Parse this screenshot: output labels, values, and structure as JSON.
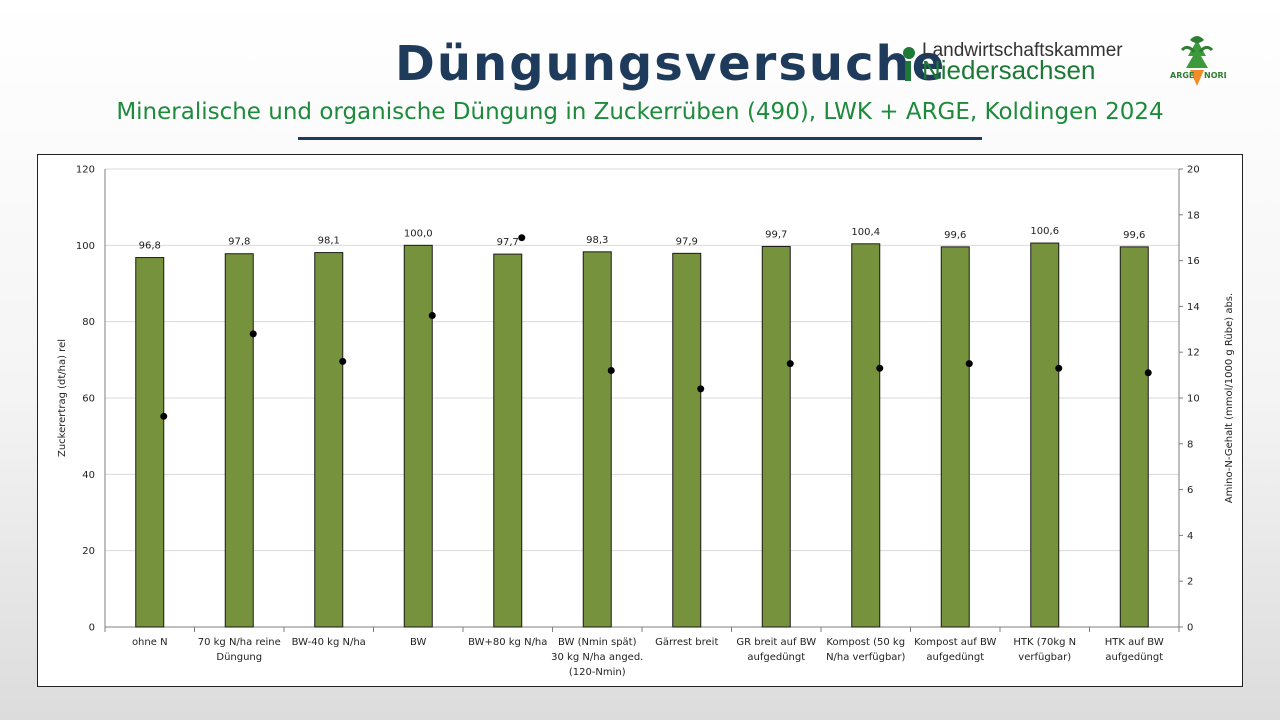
{
  "header": {
    "title": "Düngungsversuche",
    "subtitle": "Mineralische und organische Düngung in Zuckerrüben (490), LWK + ARGE, Koldingen 2024",
    "logo_lwk_line1": "Landwirtschaftskammer",
    "logo_lwk_line2": "Niedersachsen",
    "logo_arge_left": "ARGE",
    "logo_arge_right": "NORD"
  },
  "colors": {
    "title": "#1f3b5c",
    "subtitle": "#1d8a3c",
    "bar_fill": "#76923c",
    "point": "#000000"
  },
  "chart_data": {
    "type": "bar",
    "categories": [
      [
        "ohne N"
      ],
      [
        "70 kg N/ha reine",
        "Düngung"
      ],
      [
        "BW-40 kg N/ha"
      ],
      [
        "BW"
      ],
      [
        "BW+80 kg N/ha"
      ],
      [
        "BW (Nmin spät)",
        "30 kg N/ha anged.",
        "(120-Nmin)"
      ],
      [
        "Gärrest breit"
      ],
      [
        "GR breit auf BW",
        "aufgedüngt"
      ],
      [
        "Kompost (50 kg",
        "N/ha verfügbar)"
      ],
      [
        "Kompost auf BW",
        "aufgedüngt"
      ],
      [
        "HTK (70kg N",
        "verfügbar)"
      ],
      [
        "HTK auf BW",
        "aufgedüngt"
      ]
    ],
    "series": [
      {
        "name": "",
        "type": "bar",
        "axis": "left",
        "values": [
          96.8,
          97.8,
          98.1,
          100.0,
          97.7,
          98.3,
          97.9,
          99.7,
          100.4,
          99.6,
          100.6,
          99.6
        ],
        "labels": [
          "96,8",
          "97,8",
          "98,1",
          "100,0",
          "97,7",
          "98,3",
          "97,9",
          "99,7",
          "100,4",
          "99,6",
          "100,6",
          "99,6"
        ]
      },
      {
        "name": "",
        "type": "scatter",
        "axis": "right",
        "values": [
          9.2,
          12.8,
          11.6,
          13.6,
          17.0,
          11.2,
          10.4,
          11.5,
          11.3,
          11.5,
          11.3,
          11.1
        ]
      }
    ],
    "ylabel": "Zuckerertrag (dt/ha) rel",
    "y2label": "Amino-N-Gehalt (mmol/1000 g Rübe) abs.",
    "ylim": [
      0,
      120
    ],
    "y2lim": [
      0,
      20
    ],
    "yticks": [
      "0",
      "20",
      "40",
      "60",
      "80",
      "100",
      "120"
    ],
    "y2ticks": [
      "0",
      "2",
      "4",
      "6",
      "8",
      "10",
      "12",
      "14",
      "16",
      "18",
      "20"
    ],
    "grid": true
  }
}
